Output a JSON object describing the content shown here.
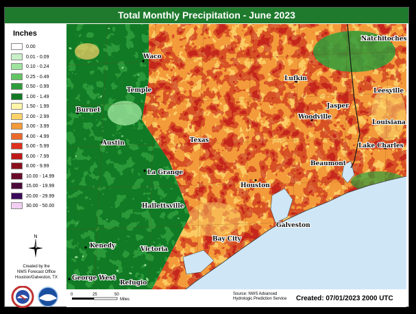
{
  "title": "Total Monthly Precipitation - June 2023",
  "legend": {
    "title": "Inches",
    "items": [
      {
        "label": "0.00",
        "color": "#ffffff"
      },
      {
        "label": "0.01 - 0.09",
        "color": "#c8f0c8"
      },
      {
        "label": "0.10 - 0.24",
        "color": "#9ee39e"
      },
      {
        "label": "0.25 - 0.49",
        "color": "#63c563"
      },
      {
        "label": "0.50 - 0.99",
        "color": "#2e9d3b"
      },
      {
        "label": "1.00 - 1.49",
        "color": "#117a25"
      },
      {
        "label": "1.50 - 1.99",
        "color": "#fff5a8"
      },
      {
        "label": "2.00 - 2.99",
        "color": "#fcd36a"
      },
      {
        "label": "3.00 - 3.99",
        "color": "#f39a3a"
      },
      {
        "label": "4.00 - 4.99",
        "color": "#ec6a2a"
      },
      {
        "label": "5.00 - 5.99",
        "color": "#e0301f"
      },
      {
        "label": "6.00 - 7.99",
        "color": "#c01818"
      },
      {
        "label": "8.00 - 9.99",
        "color": "#8a0f1c"
      },
      {
        "label": "10.00 - 14.99",
        "color": "#6a0a2a"
      },
      {
        "label": "15.00 - 19.99",
        "color": "#4a0a3a"
      },
      {
        "label": "20.00 - 29.99",
        "color": "#3a0a5a"
      },
      {
        "label": "30.00 - 50.00",
        "color": "#f3d0f3"
      }
    ]
  },
  "north_label": "N",
  "credit": {
    "line1": "Created by the",
    "line2": "NWS Forecast Office",
    "line3": "Houston/Galveston, TX"
  },
  "scale": {
    "t0": "0",
    "t1": "25",
    "t2": "50",
    "unit": "Miles"
  },
  "source": {
    "line1": "Source: NWS Advanced",
    "line2": "Hydrologic Prediction Service"
  },
  "created": "Created: 07/01/2023 2000 UTC",
  "cities": {
    "natchitoches": "Natchitoches",
    "waco": "Waco",
    "lufkin": "Lufkin",
    "leesville": "Leesville",
    "temple": "Temple",
    "jasper": "Jasper",
    "burnet": "Burnet",
    "woodville": "Woodville",
    "louisiana": "Louisiana",
    "texas": "Texas",
    "austin": "Austin",
    "lake_charles": "Lake Charles",
    "beaumont": "Beaumont",
    "la_grange": "La Grange",
    "houston": "Houston",
    "hallettsville": "Hallettsville",
    "galveston": "Galveston",
    "kenedy": "Kenedy",
    "bay_city": "Bay City",
    "victoria": "Victoria",
    "george_west": "George West",
    "refugio": "Refugio"
  },
  "colors": {
    "header": "#1f7a2d",
    "gulf": "#cfe6f6"
  }
}
